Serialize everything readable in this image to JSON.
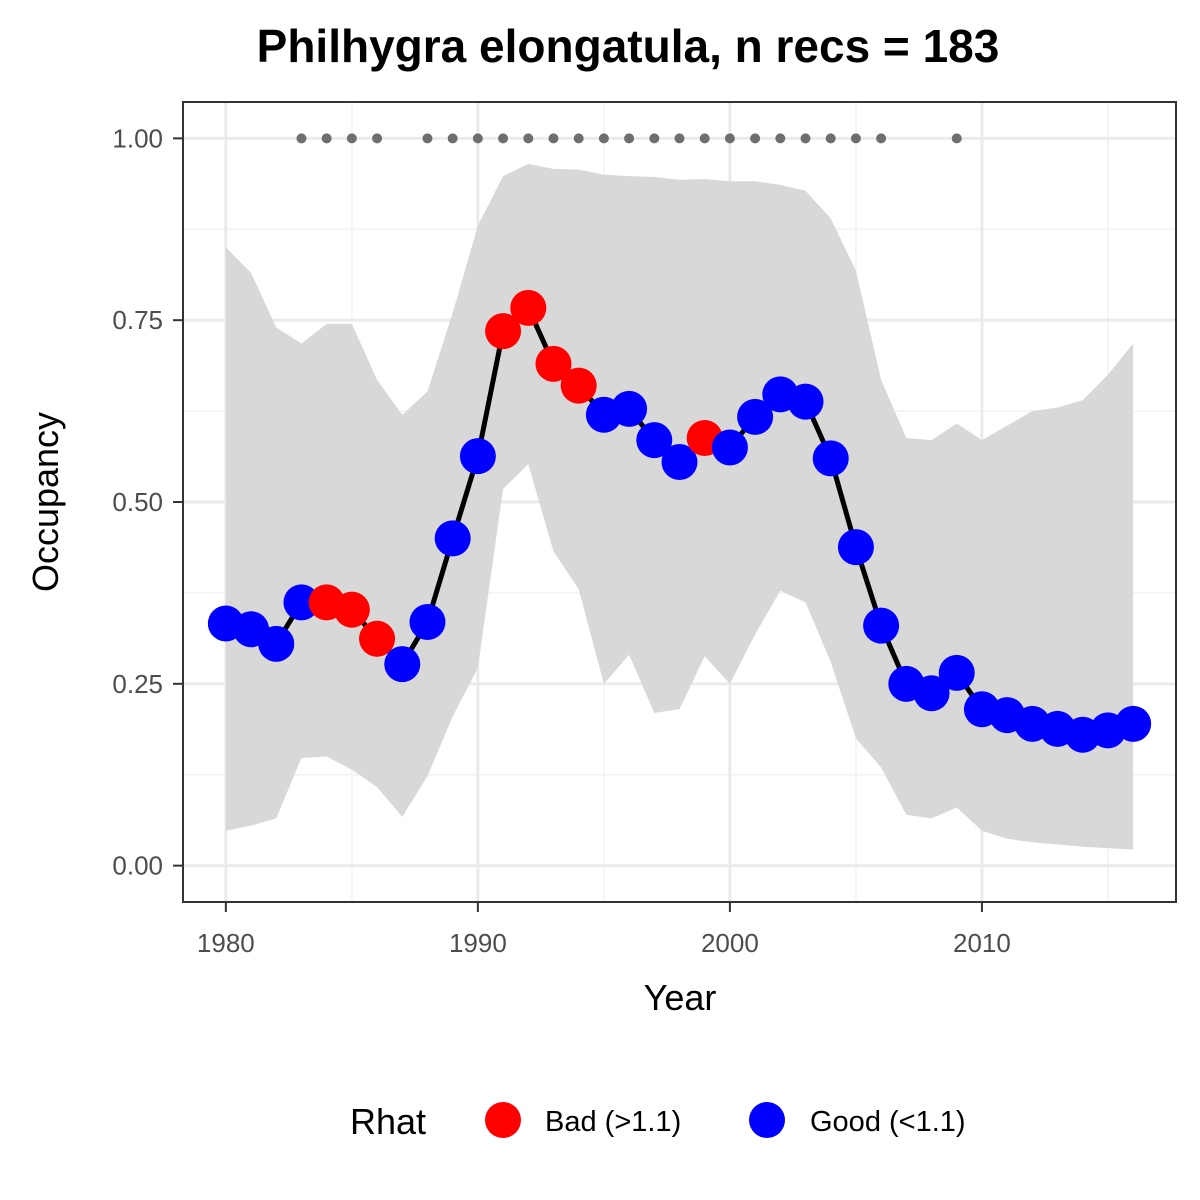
{
  "chart_data": {
    "type": "line",
    "title": "Philhygra elongatula, n recs = 183",
    "xlabel": "Year",
    "ylabel": "Occupancy",
    "xlim": [
      1978.3,
      2017.7
    ],
    "ylim": [
      -0.05,
      1.05
    ],
    "x_ticks": [
      1980,
      1990,
      2000,
      2010
    ],
    "x_tick_labels": [
      "1980",
      "1990",
      "2000",
      "2010"
    ],
    "y_ticks": [
      0,
      0.25,
      0.5,
      0.75,
      1.0
    ],
    "y_tick_labels": [
      "0.00",
      "0.25",
      "0.50",
      "0.75",
      "1.00"
    ],
    "grid": true,
    "legend": {
      "title": "Rhat",
      "position": "bottom",
      "entries": [
        {
          "label": "Bad (>1.1)",
          "color": "#ff0000"
        },
        {
          "label": "Good (<1.1)",
          "color": "#0000ff"
        }
      ]
    },
    "colors": {
      "bad": "#ff0000",
      "good": "#0000ff",
      "line": "#000000",
      "ribbon": "#d6d6d6",
      "record_dots": "#6e6e6e"
    },
    "series": [
      {
        "x": [
          1980,
          1981,
          1982,
          1983,
          1984,
          1985,
          1986,
          1987,
          1988,
          1989,
          1990,
          1991,
          1992,
          1993,
          1994,
          1995,
          1996,
          1997,
          1998,
          1999,
          2000,
          2001,
          2002,
          2003,
          2004,
          2005,
          2006,
          2007,
          2008,
          2009,
          2010,
          2011,
          2012,
          2013,
          2014,
          2015,
          2016
        ],
        "y": [
          0.333,
          0.325,
          0.305,
          0.362,
          0.362,
          0.352,
          0.312,
          0.277,
          0.335,
          0.45,
          0.563,
          0.735,
          0.767,
          0.69,
          0.66,
          0.62,
          0.628,
          0.585,
          0.555,
          0.588,
          0.575,
          0.617,
          0.648,
          0.638,
          0.56,
          0.438,
          0.33,
          0.25,
          0.237,
          0.265,
          0.215,
          0.207,
          0.195,
          0.188,
          0.18,
          0.186,
          0.195
        ],
        "rhat": [
          "Good",
          "Good",
          "Good",
          "Good",
          "Bad",
          "Bad",
          "Bad",
          "Good",
          "Good",
          "Good",
          "Good",
          "Bad",
          "Bad",
          "Bad",
          "Bad",
          "Good",
          "Good",
          "Good",
          "Good",
          "Bad",
          "Good",
          "Good",
          "Good",
          "Good",
          "Good",
          "Good",
          "Good",
          "Good",
          "Good",
          "Good",
          "Good",
          "Good",
          "Good",
          "Good",
          "Good",
          "Good",
          "Good"
        ],
        "lower": [
          0.048,
          0.055,
          0.065,
          0.148,
          0.15,
          0.132,
          0.108,
          0.067,
          0.123,
          0.205,
          0.272,
          0.518,
          0.552,
          0.432,
          0.38,
          0.25,
          0.29,
          0.21,
          0.215,
          0.288,
          0.25,
          0.318,
          0.378,
          0.362,
          0.28,
          0.175,
          0.135,
          0.07,
          0.065,
          0.08,
          0.048,
          0.037,
          0.032,
          0.029,
          0.026,
          0.024,
          0.022
        ],
        "upper": [
          0.85,
          0.815,
          0.74,
          0.718,
          0.745,
          0.745,
          0.668,
          0.62,
          0.652,
          0.76,
          0.88,
          0.948,
          0.965,
          0.958,
          0.957,
          0.95,
          0.948,
          0.947,
          0.943,
          0.944,
          0.941,
          0.941,
          0.936,
          0.928,
          0.89,
          0.818,
          0.668,
          0.588,
          0.585,
          0.608,
          0.585,
          0.605,
          0.625,
          0.63,
          0.64,
          0.675,
          0.718
        ]
      }
    ],
    "record_years": [
      1983,
      1984,
      1985,
      1986,
      1988,
      1989,
      1990,
      1991,
      1992,
      1993,
      1994,
      1995,
      1996,
      1997,
      1998,
      1999,
      2000,
      2001,
      2002,
      2003,
      2004,
      2005,
      2006,
      2009
    ],
    "record_y": 1.0
  }
}
